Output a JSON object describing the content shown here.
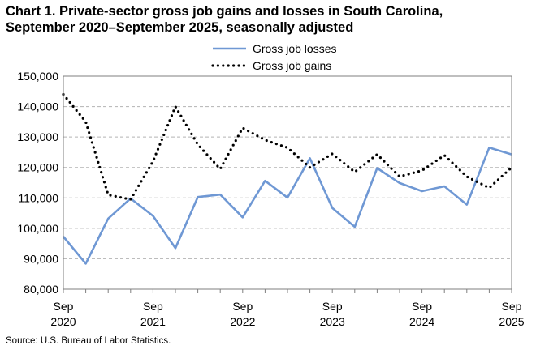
{
  "title": {
    "line1": "Chart 1. Private-sector gross job gains and losses in South Carolina,",
    "line2": "September 2020–September 2025, seasonally adjusted"
  },
  "source": "Source: U.S. Bureau of Labor Statistics.",
  "chart_data": {
    "type": "line",
    "xlabel": "",
    "ylabel": "",
    "ylim": [
      80000,
      150000
    ],
    "y_ticks": [
      "80,000",
      "90,000",
      "100,000",
      "110,000",
      "120,000",
      "130,000",
      "140,000",
      "150,000"
    ],
    "x_ticks": [
      {
        "month": "Sep",
        "year": "2020"
      },
      {
        "month": "Sep",
        "year": "2021"
      },
      {
        "month": "Sep",
        "year": "2022"
      },
      {
        "month": "Sep",
        "year": "2023"
      },
      {
        "month": "Sep",
        "year": "2024"
      },
      {
        "month": "Sep",
        "year": "2025"
      }
    ],
    "x": [
      "Sep 2020",
      "Dec 2020",
      "Mar 2021",
      "Jun 2021",
      "Sep 2021",
      "Dec 2021",
      "Mar 2022",
      "Jun 2022",
      "Sep 2022",
      "Dec 2022",
      "Mar 2023",
      "Jun 2023",
      "Sep 2023",
      "Dec 2023",
      "Mar 2024",
      "Jun 2024",
      "Sep 2024",
      "Dec 2024",
      "Mar 2025",
      "Jun 2025",
      "Sep 2025"
    ],
    "grid": true,
    "legend_position": "top-right",
    "series": [
      {
        "name": "Gross job losses",
        "color": "#6f98d4",
        "style": "solid",
        "values": [
          97300,
          88400,
          103200,
          109800,
          104100,
          93500,
          110300,
          111100,
          103600,
          115600,
          110100,
          123000,
          106700,
          100500,
          119800,
          114900,
          112200,
          113800,
          107800,
          126500,
          124300
        ]
      },
      {
        "name": "Gross job gains",
        "color": "#000000",
        "style": "dotted",
        "values": [
          144000,
          135000,
          111000,
          109500,
          122000,
          140000,
          127500,
          119500,
          133000,
          129000,
          126500,
          120000,
          124500,
          118500,
          124300,
          117000,
          119000,
          124000,
          117000,
          113300,
          120000
        ]
      }
    ]
  }
}
